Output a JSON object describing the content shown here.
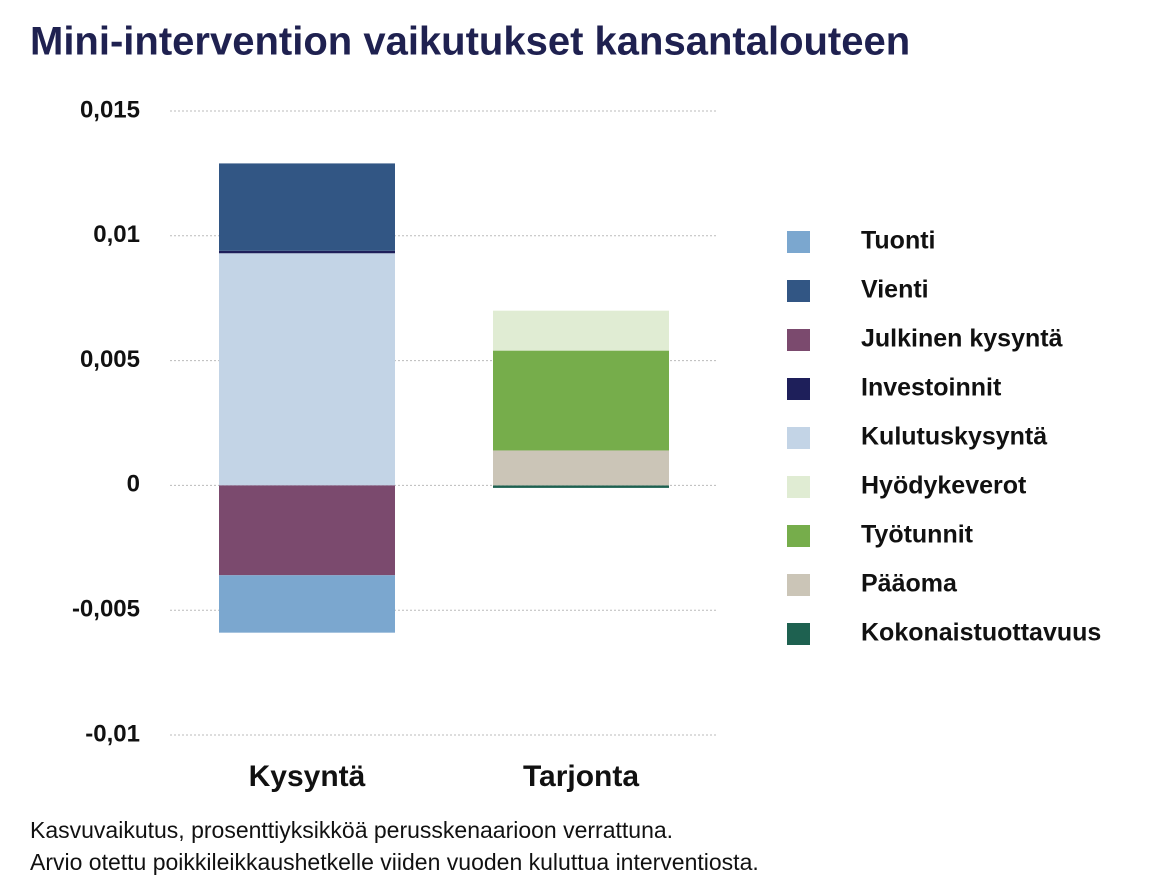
{
  "chart_data": {
    "type": "stacked-bar",
    "title": "Mini-intervention vaikutukset kansantalouteen",
    "categories": [
      "Kysyntä",
      "Tarjonta"
    ],
    "series": [
      {
        "name": "Tuonti",
        "color": "#7ba7cf",
        "values": [
          -0.0023,
          null
        ]
      },
      {
        "name": "Vienti",
        "color": "#325684",
        "values": [
          0.0035,
          null
        ]
      },
      {
        "name": "Julkinen kysyntä",
        "color": "#7b4a6e",
        "values": [
          -0.0036,
          null
        ]
      },
      {
        "name": "Investoinnit",
        "color": "#1e1f5a",
        "values": [
          0.0001,
          null
        ]
      },
      {
        "name": "Kulutuskysyntä",
        "color": "#c3d4e6",
        "values": [
          0.0093,
          null
        ]
      },
      {
        "name": "Hyödykeverot",
        "color": "#e0ecd3",
        "values": [
          null,
          0.0016
        ]
      },
      {
        "name": "Työtunnit",
        "color": "#76ad4b",
        "values": [
          null,
          0.004
        ]
      },
      {
        "name": "Pääoma",
        "color": "#cbc5b7",
        "values": [
          null,
          0.0014
        ]
      },
      {
        "name": "Kokonaistuottavuus",
        "color": "#1e6150",
        "values": [
          null,
          -0.0001
        ]
      }
    ],
    "ylim": [
      -0.01,
      0.015
    ],
    "yticks": [
      {
        "value": -0.01,
        "label": "-0,01"
      },
      {
        "value": -0.005,
        "label": "-0,005"
      },
      0,
      {
        "value": 0.005,
        "label": "0,005"
      },
      {
        "value": 0.01,
        "label": "0,01"
      },
      {
        "value": 0.015,
        "label": "0,015"
      }
    ],
    "grid": true,
    "legend": "right",
    "notes": [
      "Kasvuvaikutus, prosenttiyksikköä perusskenaarioon verrattuna.",
      "Arvio otettu poikkileikkaushetkelle viiden vuoden kuluttua interventiosta."
    ]
  }
}
